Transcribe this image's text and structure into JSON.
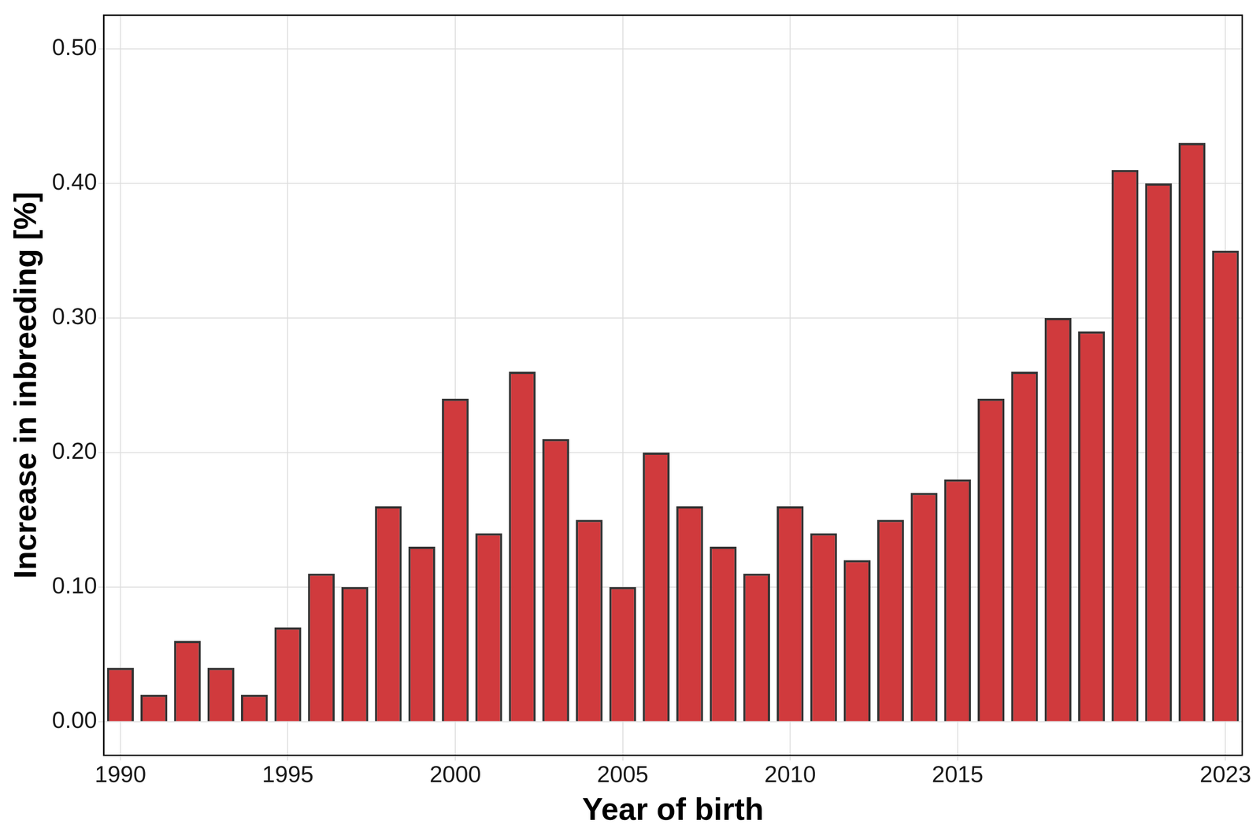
{
  "chart_data": {
    "type": "bar",
    "x_label": "Year of birth",
    "y_label": "Increase in inbreeding [%]",
    "categories": [
      "1990",
      null,
      null,
      null,
      null,
      "1995",
      null,
      null,
      null,
      null,
      "2000",
      null,
      null,
      null,
      null,
      "2005",
      null,
      null,
      null,
      null,
      "2010",
      null,
      null,
      null,
      null,
      "2015",
      null,
      null,
      null,
      null,
      null,
      null,
      null,
      "2023"
    ],
    "values": [
      0.04,
      0.02,
      0.06,
      0.04,
      0.02,
      0.07,
      0.11,
      0.1,
      0.16,
      0.13,
      0.24,
      0.14,
      0.26,
      0.21,
      0.15,
      0.1,
      0.2,
      0.16,
      0.13,
      0.11,
      0.16,
      0.14,
      0.12,
      0.15,
      0.17,
      0.18,
      0.24,
      0.26,
      0.3,
      0.29,
      0.41,
      0.4,
      0.43,
      0.35
    ],
    "color": "#d03a3d",
    "ylim": [
      -0.025,
      0.525
    ],
    "yticks": [
      {
        "value": 0,
        "label": "0.00"
      },
      {
        "value": 0.1,
        "label": "0.10"
      },
      {
        "value": 0.2,
        "label": "0.20"
      },
      {
        "value": 0.3,
        "label": "0.30"
      },
      {
        "value": 0.4,
        "label": "0.40"
      },
      {
        "value": 0.5,
        "label": "0.50"
      }
    ],
    "grid": true
  }
}
